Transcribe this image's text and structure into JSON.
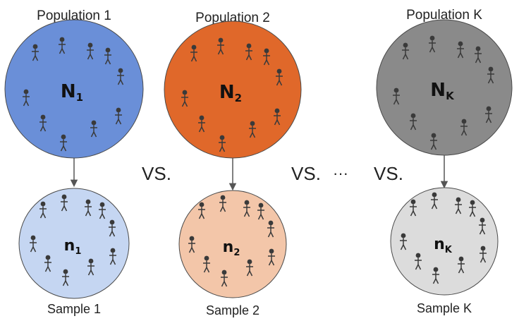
{
  "colors": {
    "population_1_fill": "#6a8fd8",
    "population_2_fill": "#e0682a",
    "population_k_fill": "#8a8a8a",
    "sample_1_fill": "#c5d6f2",
    "sample_2_fill": "#f3c6a9",
    "sample_k_fill": "#dcdcdc",
    "figure_stroke": "#3a3a3a",
    "arrow": "#555555"
  },
  "groups": [
    {
      "population_label": "Population 1",
      "population_symbol": "N",
      "population_subscript": "1",
      "sample_label": "Sample 1",
      "sample_symbol": "n",
      "sample_subscript": "1"
    },
    {
      "population_label": "Population 2",
      "population_symbol": "N",
      "population_subscript": "2",
      "sample_label": "Sample 2",
      "sample_symbol": "n",
      "sample_subscript": "2"
    },
    {
      "population_label": "Population K",
      "population_symbol": "N",
      "population_subscript": "K",
      "sample_label": "Sample K",
      "sample_symbol": "n",
      "sample_subscript": "K"
    }
  ],
  "comparison": {
    "vs_label": "VS.",
    "ellipsis": "···"
  },
  "icons": {
    "person": "person-icon",
    "arrow": "arrow-down-icon"
  }
}
